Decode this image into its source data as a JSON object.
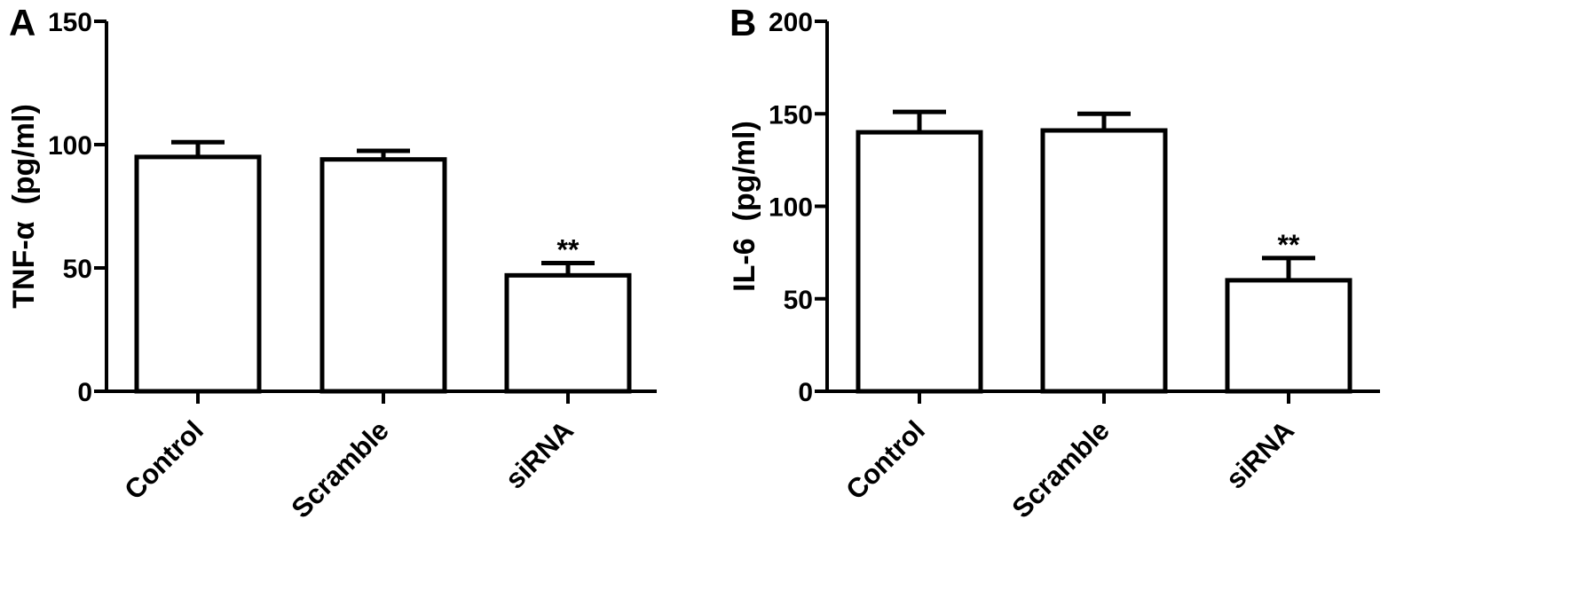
{
  "chart_data": [
    {
      "type": "bar",
      "panel_label": "A",
      "ylabel": "TNF-α  (pg/ml)",
      "xlabel": "",
      "ylim": [
        0,
        150
      ],
      "yticks": [
        0,
        50,
        100,
        150
      ],
      "categories": [
        "Control",
        "Scramble",
        "siRNA"
      ],
      "values": [
        95,
        94,
        47
      ],
      "errors": [
        6,
        3.5,
        5
      ],
      "annotations": [
        "",
        "",
        "**"
      ],
      "grid": false,
      "legend": "none"
    },
    {
      "type": "bar",
      "panel_label": "B",
      "ylabel": "IL-6  (pg/ml)",
      "xlabel": "",
      "ylim": [
        0,
        200
      ],
      "yticks": [
        0,
        50,
        100,
        150,
        200
      ],
      "categories": [
        "Control",
        "Scramble",
        "siRNA"
      ],
      "values": [
        140,
        141,
        60
      ],
      "errors": [
        11,
        9,
        12
      ],
      "annotations": [
        "",
        "",
        "**"
      ],
      "grid": false,
      "legend": "none"
    }
  ]
}
